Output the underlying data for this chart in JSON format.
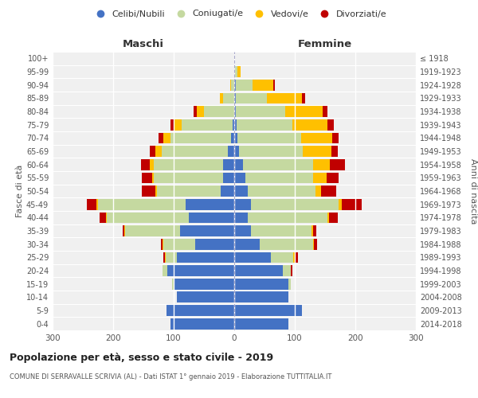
{
  "age_groups": [
    "0-4",
    "5-9",
    "10-14",
    "15-19",
    "20-24",
    "25-29",
    "30-34",
    "35-39",
    "40-44",
    "45-49",
    "50-54",
    "55-59",
    "60-64",
    "65-69",
    "70-74",
    "75-79",
    "80-84",
    "85-89",
    "90-94",
    "95-99",
    "100+"
  ],
  "birth_years": [
    "2014-2018",
    "2009-2013",
    "2004-2008",
    "1999-2003",
    "1994-1998",
    "1989-1993",
    "1984-1988",
    "1979-1983",
    "1974-1978",
    "1969-1973",
    "1964-1968",
    "1959-1963",
    "1954-1958",
    "1949-1953",
    "1944-1948",
    "1939-1943",
    "1934-1938",
    "1929-1933",
    "1924-1928",
    "1919-1923",
    "≤ 1918"
  ],
  "males_celibi": [
    105,
    112,
    95,
    100,
    110,
    95,
    65,
    90,
    75,
    80,
    22,
    18,
    18,
    10,
    5,
    2,
    0,
    0,
    0,
    0,
    0
  ],
  "males_coniugati": [
    0,
    0,
    0,
    2,
    8,
    18,
    52,
    90,
    135,
    145,
    105,
    115,
    115,
    110,
    100,
    85,
    50,
    18,
    5,
    0,
    0
  ],
  "males_vedovi": [
    0,
    0,
    0,
    0,
    0,
    2,
    2,
    2,
    2,
    2,
    3,
    3,
    6,
    10,
    12,
    12,
    12,
    6,
    2,
    0,
    0
  ],
  "males_divorziati": [
    0,
    0,
    0,
    0,
    0,
    2,
    2,
    2,
    10,
    16,
    22,
    16,
    15,
    10,
    8,
    6,
    5,
    0,
    0,
    0,
    0
  ],
  "females_nubili": [
    90,
    112,
    90,
    90,
    80,
    60,
    42,
    28,
    22,
    28,
    22,
    18,
    15,
    8,
    5,
    4,
    2,
    2,
    2,
    0,
    0
  ],
  "females_coniugate": [
    0,
    0,
    0,
    4,
    14,
    38,
    88,
    100,
    132,
    145,
    112,
    112,
    115,
    105,
    105,
    92,
    82,
    52,
    28,
    5,
    0
  ],
  "females_vedove": [
    0,
    0,
    0,
    0,
    0,
    2,
    2,
    2,
    2,
    5,
    10,
    22,
    28,
    48,
    52,
    58,
    62,
    58,
    35,
    5,
    0
  ],
  "females_divorziate": [
    0,
    0,
    0,
    0,
    2,
    5,
    5,
    5,
    15,
    32,
    25,
    20,
    25,
    10,
    10,
    10,
    8,
    5,
    2,
    0,
    0
  ],
  "colors": {
    "celibi": "#4472c4",
    "coniugati": "#c5d9a0",
    "vedovi": "#ffc000",
    "divorziati": "#c00000"
  },
  "title": "Popolazione per età, sesso e stato civile - 2019",
  "subtitle": "COMUNE DI SERRAVALLE SCRIVIA (AL) - Dati ISTAT 1° gennaio 2019 - Elaborazione TUTTITALIA.IT",
  "xlabel_left": "Maschi",
  "xlabel_right": "Femmine",
  "ylabel_left": "Fasce di età",
  "ylabel_right": "Anni di nascita",
  "xlim": 300,
  "legend_labels": [
    "Celibi/Nubili",
    "Coniugati/e",
    "Vedovi/e",
    "Divorziati/e"
  ],
  "bg_color": "#f0f0f0"
}
